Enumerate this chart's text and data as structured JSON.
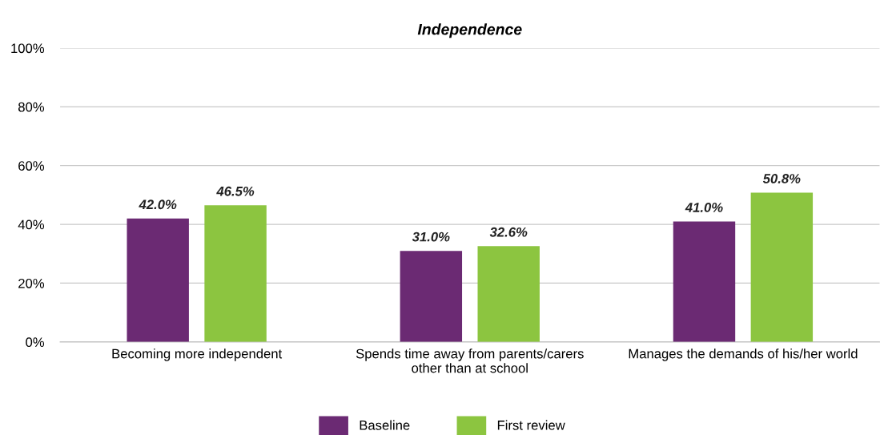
{
  "chart_data": {
    "type": "bar",
    "title": "Independence",
    "categories": [
      "Becoming more independent",
      "Spends time away from parents/carers\nother than at school",
      "Manages the demands of his/her world"
    ],
    "series": [
      {
        "name": "Baseline",
        "color": "#6b2a73",
        "values": [
          42.0,
          31.0,
          41.0
        ],
        "value_labels": [
          "42.0%",
          "31.0%",
          "41.0%"
        ]
      },
      {
        "name": "First review",
        "color": "#8cc540",
        "values": [
          46.5,
          32.6,
          50.8
        ],
        "value_labels": [
          "46.5%",
          "32.6%",
          "50.8%"
        ]
      }
    ],
    "ylim": [
      0,
      100
    ],
    "yticks": [
      {
        "value": 0,
        "label": "0%"
      },
      {
        "value": 20,
        "label": "20%"
      },
      {
        "value": 40,
        "label": "40%"
      },
      {
        "value": 60,
        "label": "60%"
      },
      {
        "value": 80,
        "label": "80%"
      },
      {
        "value": 100,
        "label": "100%"
      }
    ],
    "grid": "y",
    "legend": "bottom"
  }
}
